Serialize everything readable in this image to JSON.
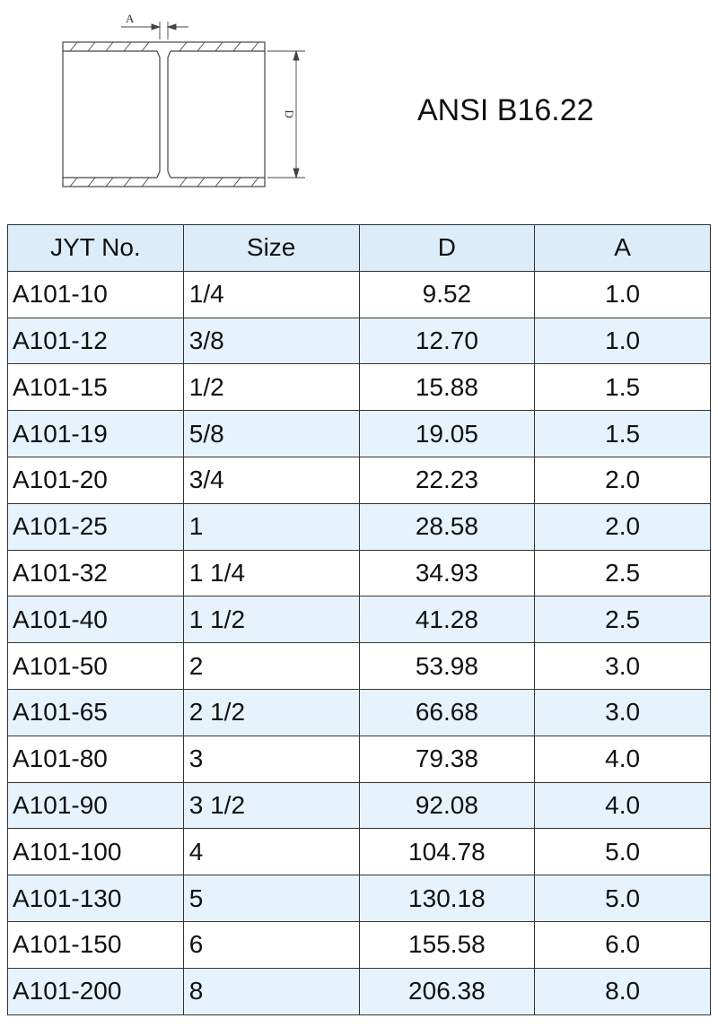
{
  "diagram": {
    "labels": [
      "A",
      "D"
    ]
  },
  "header": {
    "title": "ANSI B16.22"
  },
  "table": {
    "columns": [
      "JYT No.",
      "Size",
      "D",
      "A"
    ],
    "rows": [
      [
        "A101-10",
        "1/4",
        "9.52",
        "1.0"
      ],
      [
        "A101-12",
        "3/8",
        "12.70",
        "1.0"
      ],
      [
        "A101-15",
        "1/2",
        "15.88",
        "1.5"
      ],
      [
        "A101-19",
        "5/8",
        "19.05",
        "1.5"
      ],
      [
        "A101-20",
        "3/4",
        "22.23",
        "2.0"
      ],
      [
        "A101-25",
        "1",
        "28.58",
        "2.0"
      ],
      [
        "A101-32",
        "1 1/4",
        "34.93",
        "2.5"
      ],
      [
        "A101-40",
        "1 1/2",
        "41.28",
        "2.5"
      ],
      [
        "A101-50",
        "2",
        "53.98",
        "3.0"
      ],
      [
        "A101-65",
        "2 1/2",
        "66.68",
        "3.0"
      ],
      [
        "A101-80",
        "3",
        "79.38",
        "4.0"
      ],
      [
        "A101-90",
        "3 1/2",
        "92.08",
        "4.0"
      ],
      [
        "A101-100",
        "4",
        "104.78",
        "5.0"
      ],
      [
        "A101-130",
        "5",
        "130.18",
        "5.0"
      ],
      [
        "A101-150",
        "6",
        "155.58",
        "6.0"
      ],
      [
        "A101-200",
        "8",
        "206.38",
        "8.0"
      ]
    ]
  }
}
